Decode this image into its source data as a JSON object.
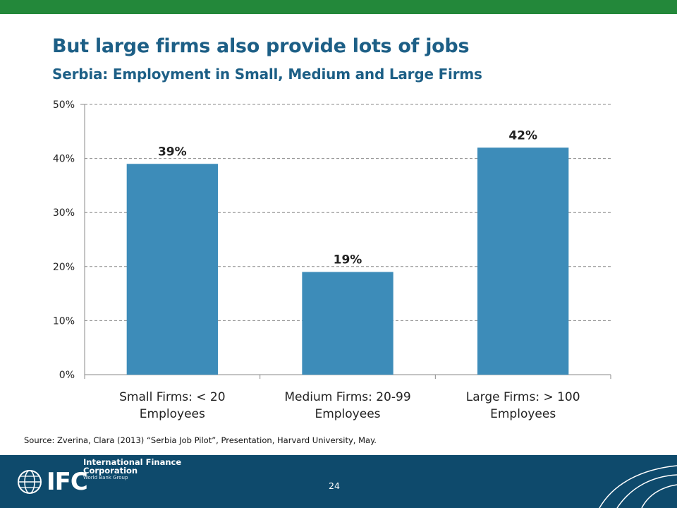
{
  "slide": {
    "title": "But large firms also provide lots of jobs",
    "subtitle": "Serbia: Employment in Small, Medium and Large Firms",
    "source": "Source: Zverina, Clara (2013) “Serbia Job Pilot”,  Presentation, Harvard University, May.",
    "page_number": "24"
  },
  "footer": {
    "logo_text": "IFC",
    "org_name": "International Finance Corporation",
    "org_group": "World Bank Group"
  },
  "colors": {
    "top_bar": "#23883a",
    "title": "#1d5f86",
    "bar": "#3d8cb9",
    "footer": "#0e4a6c",
    "grid": "#8a8a8a"
  },
  "chart_data": {
    "type": "bar",
    "categories": [
      [
        "Small Firms: < 20",
        "Employees"
      ],
      [
        "Medium Firms: 20-99",
        "Employees"
      ],
      [
        "Large Firms: > 100",
        "Employees"
      ]
    ],
    "values": [
      39,
      19,
      42
    ],
    "data_labels": [
      "39%",
      "19%",
      "42%"
    ],
    "ylim": [
      0,
      50
    ],
    "yticks": [
      0,
      10,
      20,
      30,
      40,
      50
    ],
    "ytick_labels": [
      "0%",
      "10%",
      "20%",
      "30%",
      "40%",
      "50%"
    ],
    "grid": true,
    "grid_style": "dashed",
    "legend": "none"
  }
}
